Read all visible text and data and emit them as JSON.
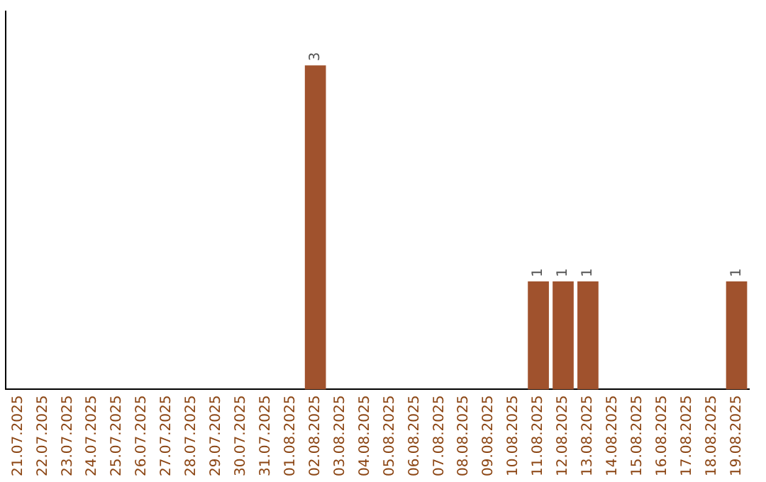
{
  "chart_data": {
    "type": "bar",
    "categories": [
      "21.07.2025",
      "22.07.2025",
      "23.07.2025",
      "24.07.2025",
      "25.07.2025",
      "26.07.2025",
      "27.07.2025",
      "28.07.2025",
      "29.07.2025",
      "30.07.2025",
      "31.07.2025",
      "01.08.2025",
      "02.08.2025",
      "03.08.2025",
      "04.08.2025",
      "05.08.2025",
      "06.08.2025",
      "07.08.2025",
      "08.08.2025",
      "09.08.2025",
      "10.08.2025",
      "11.08.2025",
      "12.08.2025",
      "13.08.2025",
      "14.08.2025",
      "15.08.2025",
      "16.08.2025",
      "17.08.2025",
      "18.08.2025",
      "19.08.2025"
    ],
    "values": [
      null,
      null,
      null,
      null,
      null,
      null,
      null,
      null,
      null,
      null,
      null,
      null,
      3,
      null,
      null,
      null,
      null,
      null,
      null,
      null,
      null,
      1,
      1,
      1,
      null,
      null,
      null,
      null,
      null,
      1
    ],
    "data_labels": true,
    "color": "#a0522d",
    "tick_labels": "x",
    "grid": false,
    "legend": false
  }
}
